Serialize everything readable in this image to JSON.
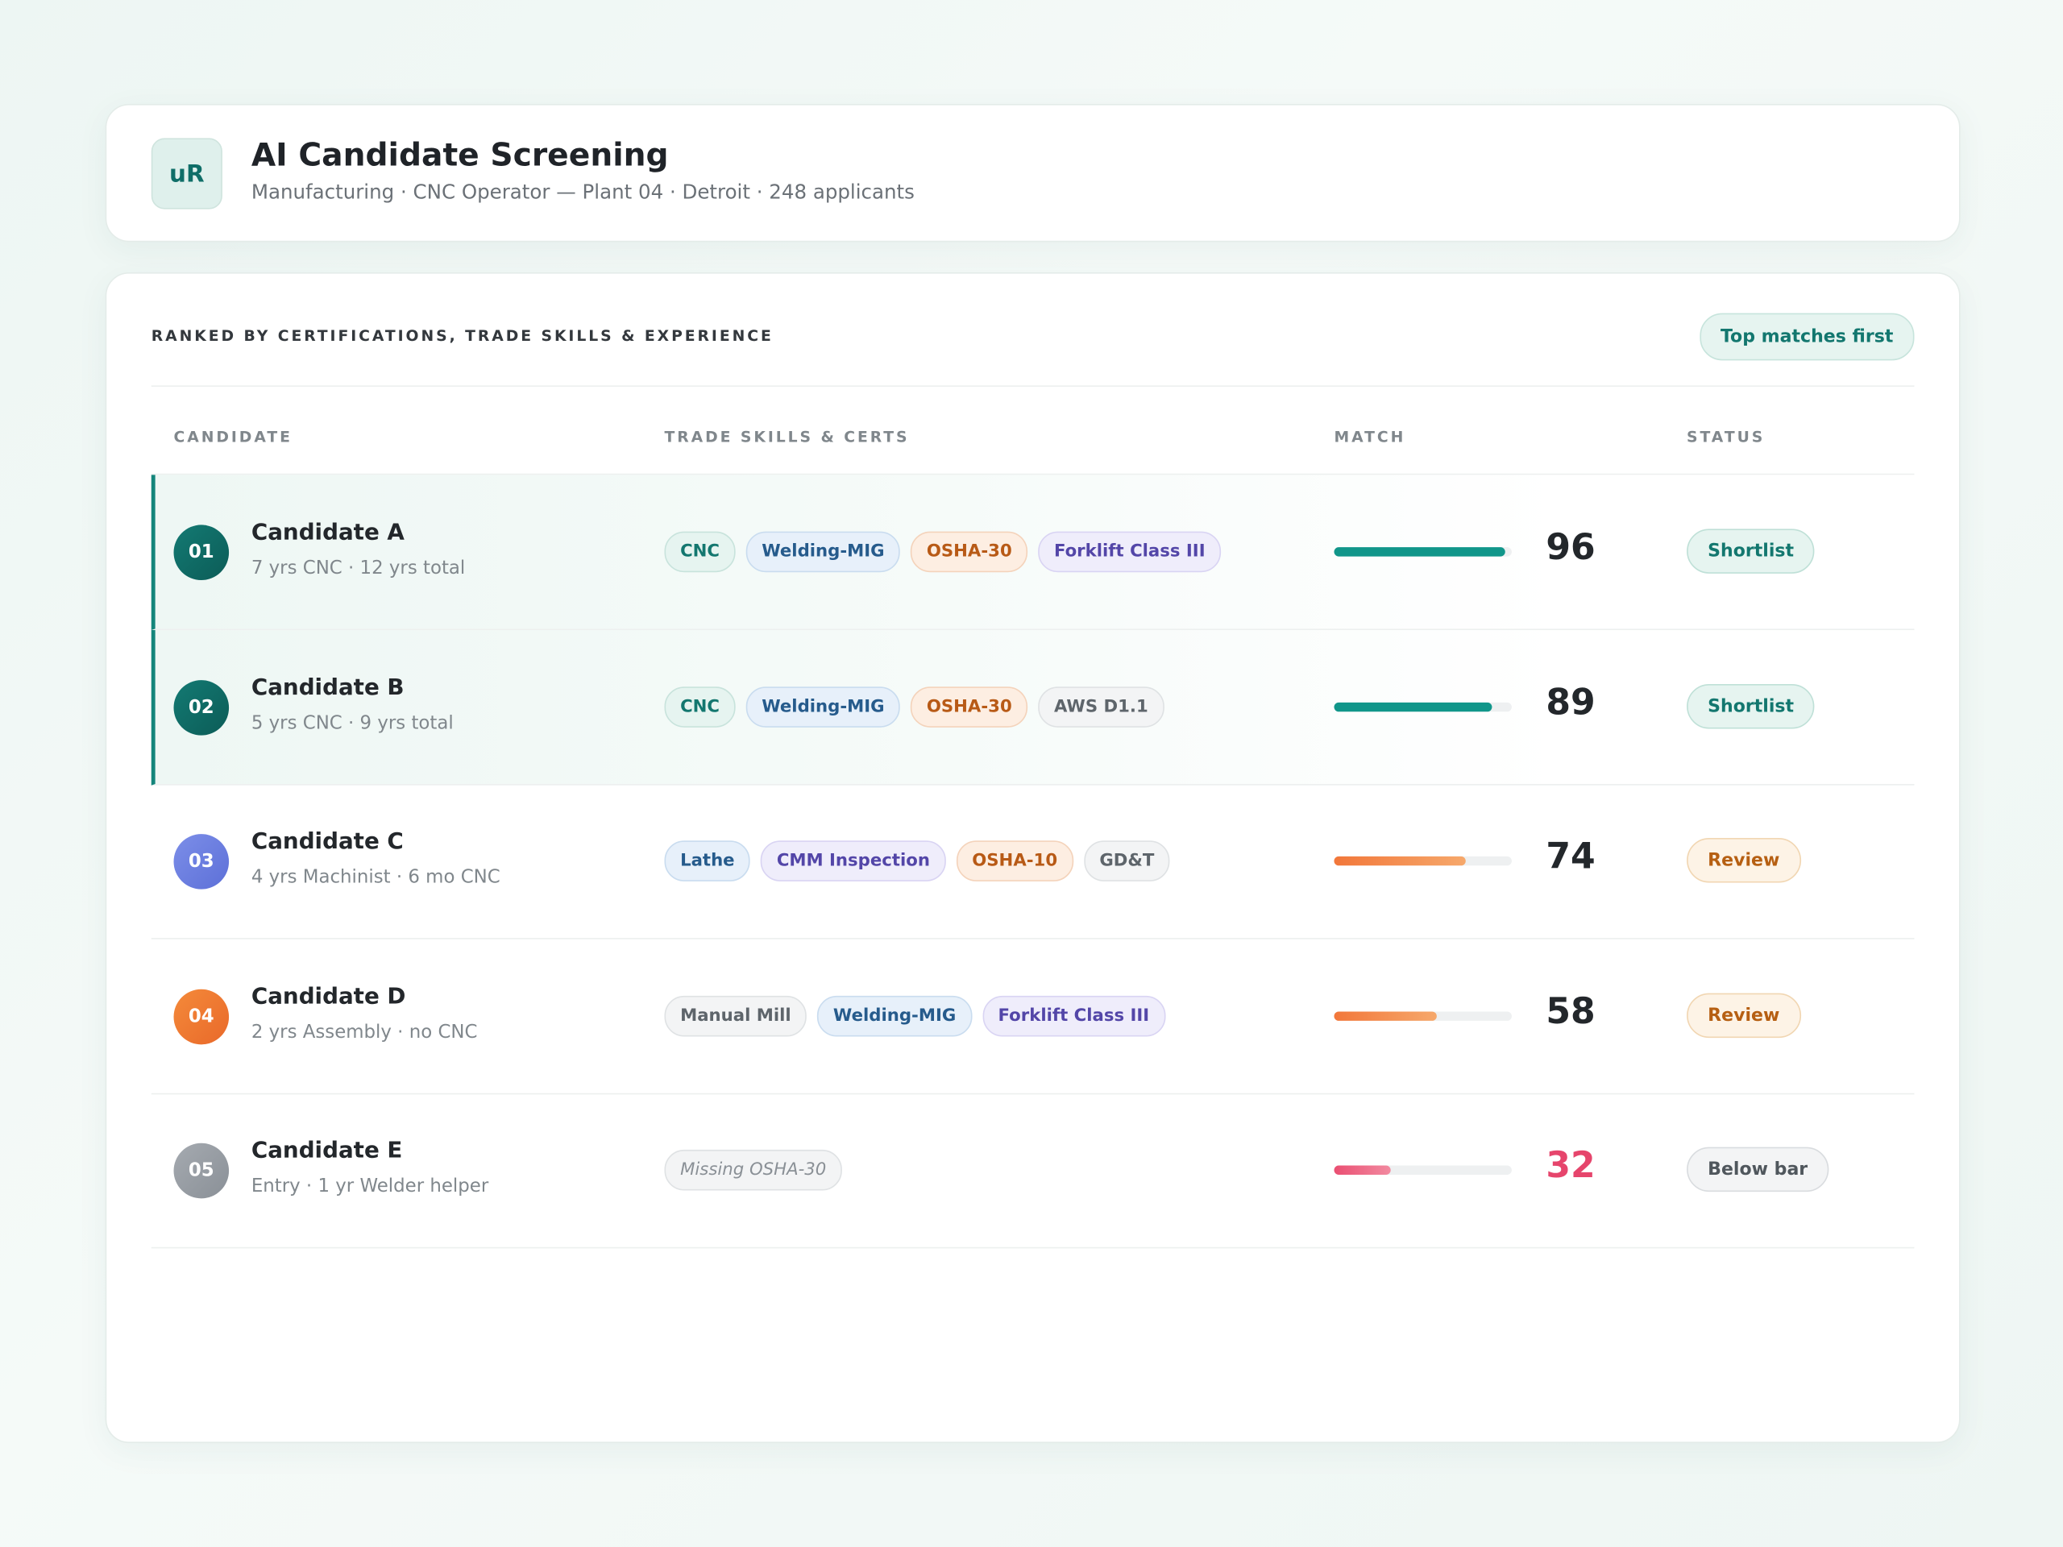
{
  "header": {
    "logo": "uR",
    "title": "AI Candidate Screening",
    "subtitle": "Manufacturing · CNC Operator — Plant 04 · Detroit · 248 applicants"
  },
  "section": {
    "heading": "RANKED BY CERTIFICATIONS, TRADE SKILLS & EXPERIENCE",
    "sort_button": "Top matches first"
  },
  "table": {
    "columns": [
      "CANDIDATE",
      "TRADE SKILLS & CERTS",
      "MATCH",
      "STATUS"
    ],
    "rows": [
      {
        "rank": "01",
        "name": "Candidate A",
        "detail": "7 yrs CNC · 12 yrs total",
        "tone": "teal",
        "highlight": true,
        "skills": [
          {
            "label": "CNC",
            "tone": "teal"
          },
          {
            "label": "Welding-MIG",
            "tone": "blue"
          },
          {
            "label": "OSHA-30",
            "tone": "orange"
          },
          {
            "label": "Forklift Class III",
            "tone": "purple"
          }
        ],
        "match": 96,
        "status": "Shortlist"
      },
      {
        "rank": "02",
        "name": "Candidate B",
        "detail": "5 yrs CNC · 9 yrs total",
        "tone": "teal",
        "highlight": true,
        "skills": [
          {
            "label": "CNC",
            "tone": "teal"
          },
          {
            "label": "Welding-MIG",
            "tone": "blue"
          },
          {
            "label": "OSHA-30",
            "tone": "orange"
          },
          {
            "label": "AWS D1.1",
            "tone": "gray"
          }
        ],
        "match": 89,
        "status": "Shortlist"
      },
      {
        "rank": "03",
        "name": "Candidate C",
        "detail": "4 yrs Machinist · 6 mo CNC",
        "tone": "indigo",
        "highlight": false,
        "skills": [
          {
            "label": "Lathe",
            "tone": "blue"
          },
          {
            "label": "CMM Inspection",
            "tone": "purple"
          },
          {
            "label": "OSHA-10",
            "tone": "orange"
          },
          {
            "label": "GD&T",
            "tone": "gray"
          }
        ],
        "match": 74,
        "status": "Review"
      },
      {
        "rank": "04",
        "name": "Candidate D",
        "detail": "2 yrs Assembly · no CNC",
        "tone": "orange",
        "highlight": false,
        "skills": [
          {
            "label": "Manual Mill",
            "tone": "gray"
          },
          {
            "label": "Welding-MIG",
            "tone": "blue"
          },
          {
            "label": "Forklift Class III",
            "tone": "purple"
          }
        ],
        "match": 58,
        "status": "Review"
      },
      {
        "rank": "05",
        "name": "Candidate E",
        "detail": "Entry · 1 yr Welder helper",
        "tone": "gray",
        "highlight": false,
        "skills": [
          {
            "label": "Missing OSHA-30",
            "tone": "missing"
          }
        ],
        "match": 32,
        "status": "Below bar"
      }
    ]
  }
}
